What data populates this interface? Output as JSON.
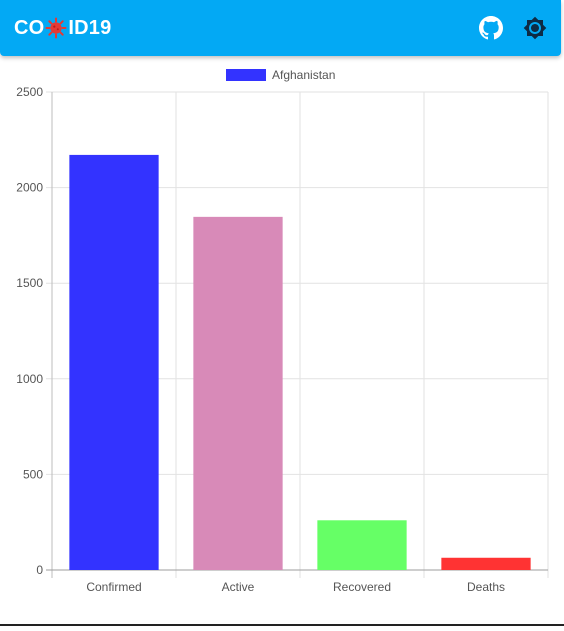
{
  "app": {
    "title_prefix": "CO",
    "title_suffix": "ID19",
    "virus_icon": "virus-icon",
    "github_icon": "github-icon",
    "settings_icon": "brightness-gear-icon",
    "appbar_color": "#03a9f4",
    "virus_color": "#e53935"
  },
  "chart_data": {
    "type": "bar",
    "categories": [
      "Confirmed",
      "Active",
      "Recovered",
      "Deaths"
    ],
    "series": [
      {
        "name": "Afghanistan",
        "values": [
          2171,
          1847,
          260,
          64
        ],
        "colors": [
          "#3333ff",
          "#d88ab8",
          "#66ff66",
          "#ff3333"
        ]
      }
    ],
    "legend": {
      "label": "Afghanistan",
      "color": "#3333ff",
      "position": "top-center"
    },
    "ylim": [
      0,
      2500
    ],
    "yticks": [
      0,
      500,
      1000,
      1500,
      2000,
      2500
    ],
    "grid": true,
    "title": "",
    "xlabel": "",
    "ylabel": ""
  }
}
